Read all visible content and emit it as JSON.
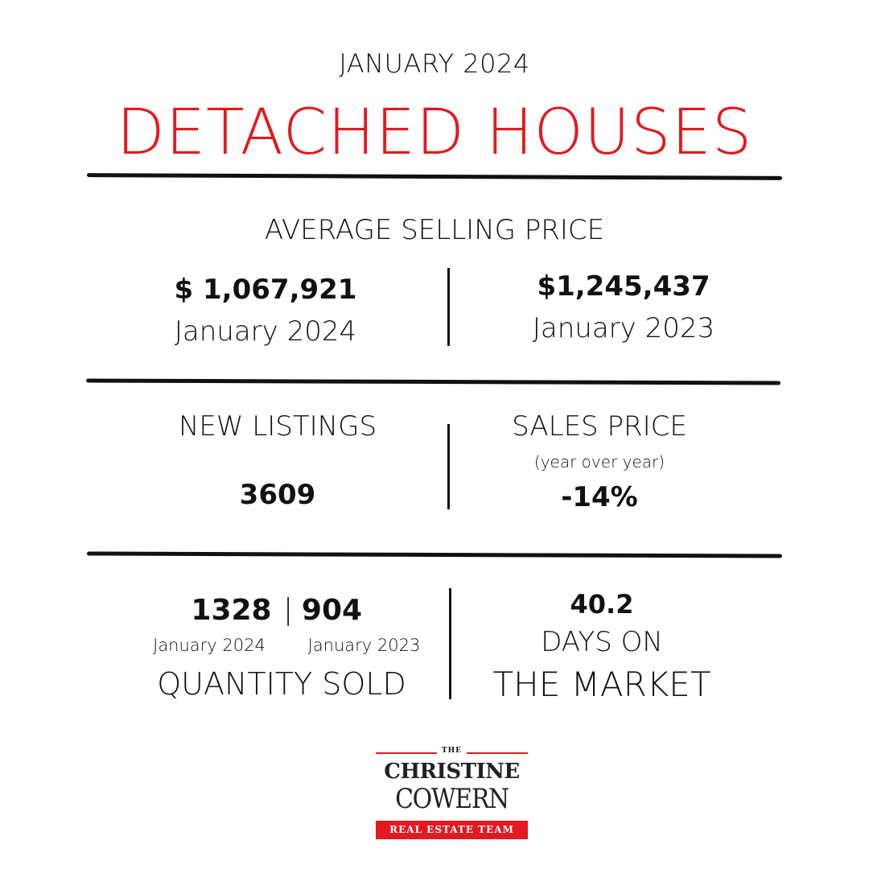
{
  "header": {
    "month": "JANUARY 2024",
    "title": "DETACHED HOUSES",
    "title_color": "#e3191f"
  },
  "average_selling_price": {
    "heading": "AVERAGE SELLING PRICE",
    "current": {
      "value": "$ 1,067,921",
      "label": "January 2024"
    },
    "previous": {
      "value": "$1,245,437",
      "label": "January 2023"
    }
  },
  "new_listings": {
    "heading": "NEW LISTINGS",
    "value": "3609"
  },
  "sales_price": {
    "heading": "SALES PRICE",
    "subheading": "(year over year)",
    "value": "-14%"
  },
  "quantity_sold": {
    "current": {
      "value": "1328",
      "label": "January 2024"
    },
    "separator": "|",
    "previous": {
      "value": "904",
      "label": "January 2023"
    },
    "heading": "QUANTITY SOLD"
  },
  "days_on_market": {
    "value": "40.2",
    "line1": "DAYS ON",
    "line2": "THE MARKET"
  },
  "logo": {
    "the": "THE",
    "line1": "CHRISTINE",
    "line2": "COWERN",
    "band": "REAL ESTATE TEAM",
    "accent_color": "#e3191f"
  }
}
